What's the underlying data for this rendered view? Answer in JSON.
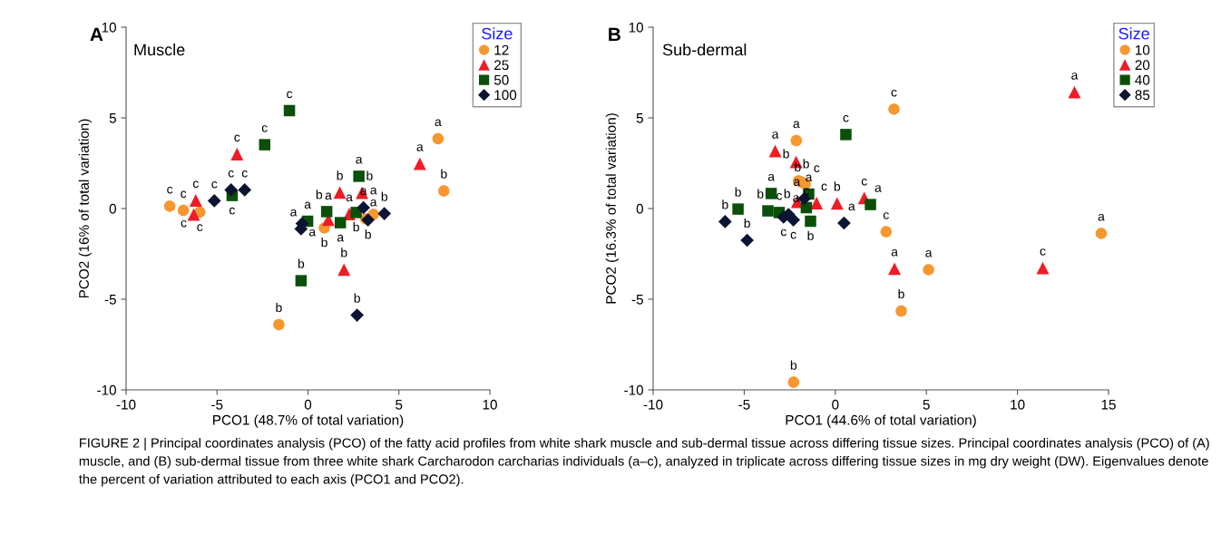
{
  "chart_data": [
    {
      "type": "scatter",
      "xlabel": "PCO1 (48.7% of total variation)",
      "ylabel": "PCO2 (16% of total variation)",
      "legend_title": "Size",
      "legend": "top right",
      "annotations": [
        "A",
        "Muscle",
        "FIGURE 2 | Principal coordinates analysis (PCO) of the fatty acid profiles from white shark muscle and sub-dermal tissue across differing tissue sizes. Principal coordinates analysis (PCO) of (A) muscle, and (B) sub-dermal tissue from three white shark Carcharodon carcharias individuals (a–c), analyzed in triplicate across differing tissue sizes in mg dry weight (DW). Eigenvalues denote the percent of variation attributed to each axis (PCO1 and PCO2)."
      ],
      "xlim": [
        -10,
        10
      ],
      "xticks": [
        -10,
        -5,
        0,
        5,
        10
      ],
      "ylim": [
        -10,
        10
      ],
      "yticks": [
        -10,
        -5,
        0,
        5,
        10
      ],
      "grid": false,
      "series": [
        {
          "name": "12",
          "color": "#f7972f",
          "marker": "circle",
          "x": [
            -7.6,
            -6.85,
            -5.95,
            -1.6,
            0.9,
            3.18,
            3.6,
            7.15,
            7.47
          ],
          "values": [
            0.13,
            -0.1,
            -0.2,
            -6.4,
            -1.07,
            -0.57,
            -0.33,
            3.85,
            0.97
          ],
          "value_labels": [
            "c",
            "c",
            "c",
            "b",
            "b",
            "a",
            "a",
            "a",
            "b"
          ]
        },
        {
          "name": "25",
          "color": "#ee1c24",
          "marker": "triangle",
          "x": [
            -6.17,
            -6.28,
            -3.9,
            1.12,
            1.75,
            2.27,
            2.97,
            1.98,
            6.15
          ],
          "values": [
            0.45,
            -0.33,
            3.0,
            -0.62,
            0.88,
            -0.3,
            0.87,
            -3.37,
            2.47
          ],
          "value_labels": [
            "c",
            "c",
            "c",
            "a",
            "b",
            "a",
            "b",
            "b",
            "a"
          ]
        },
        {
          "name": "50",
          "color": "#0a4f0a",
          "marker": "square",
          "x": [
            -4.17,
            -2.38,
            -1.02,
            -0.02,
            1.03,
            1.78,
            2.65,
            2.8,
            -0.38
          ],
          "values": [
            0.72,
            3.52,
            5.4,
            -0.7,
            -0.17,
            -0.78,
            -0.22,
            1.78,
            -3.98
          ],
          "value_labels": [
            "c",
            "c",
            "c",
            "a",
            "b",
            "a",
            "b",
            "a",
            "b"
          ]
        },
        {
          "name": "100",
          "color": "#0b1433",
          "marker": "diamond",
          "x": [
            -5.15,
            -4.23,
            -3.48,
            -0.38,
            -0.32,
            3.05,
            3.3,
            4.2,
            2.7
          ],
          "values": [
            0.43,
            1.03,
            1.03,
            -1.12,
            -0.83,
            0.05,
            -0.63,
            -0.28,
            -5.88
          ],
          "value_labels": [
            "c",
            "c",
            "c",
            "a",
            "a",
            "a",
            "b",
            "b",
            "b"
          ]
        }
      ]
    },
    {
      "type": "scatter",
      "xlabel": "PCO1 (44.6% of total variation)",
      "ylabel": "PCO2 (16.3% of total variation)",
      "legend_title": "Size",
      "legend": "top right",
      "annotations": [
        "B",
        "Sub-dermal"
      ],
      "xlim": [
        -10,
        15
      ],
      "xticks": [
        -10,
        -5,
        0,
        5,
        10,
        15
      ],
      "ylim": [
        -10,
        10
      ],
      "yticks": [
        -10,
        -5,
        0,
        5,
        10
      ],
      "grid": false,
      "series": [
        {
          "name": "10",
          "color": "#f7972f",
          "marker": "circle",
          "x": [
            3.22,
            -2.14,
            -2.02,
            -1.85,
            -1.65,
            2.79,
            5.12,
            3.62,
            -2.29,
            14.6
          ],
          "values": [
            5.48,
            3.75,
            1.53,
            1.45,
            1.35,
            -1.28,
            -3.37,
            -5.65,
            -9.58,
            -1.37
          ],
          "value_labels": [
            "c",
            "a",
            "b",
            "c",
            "b",
            "c",
            "a",
            "b",
            "b",
            "a"
          ]
        },
        {
          "name": "20",
          "color": "#ee1c24",
          "marker": "triangle",
          "x": [
            -3.3,
            -2.15,
            -2.09,
            -1.03,
            0.1,
            1.59,
            3.25,
            13.13,
            11.39
          ],
          "values": [
            3.17,
            2.57,
            0.37,
            0.3,
            0.28,
            0.58,
            -3.32,
            6.42,
            -3.28
          ],
          "value_labels": [
            "a",
            "b",
            "b",
            "c",
            "b",
            "c",
            "a",
            "a",
            "c"
          ]
        },
        {
          "name": "40",
          "color": "#0a4f0a",
          "marker": "square",
          "x": [
            -5.34,
            -3.52,
            -3.7,
            -3.08,
            -1.59,
            -1.46,
            -1.36,
            0.58,
            1.93
          ],
          "values": [
            -0.03,
            0.83,
            -0.13,
            -0.22,
            0.05,
            0.8,
            -0.7,
            4.08,
            0.22
          ],
          "value_labels": [
            "b",
            "a",
            "b",
            "c",
            "c",
            "a",
            "b",
            "c",
            "a"
          ]
        },
        {
          "name": "85",
          "color": "#0b1433",
          "marker": "diamond",
          "x": [
            -6.05,
            -4.84,
            -2.84,
            -2.57,
            -2.3,
            -1.7,
            0.48
          ],
          "values": [
            -0.72,
            -1.75,
            -0.47,
            -0.33,
            -0.63,
            0.55,
            -0.8
          ],
          "value_labels": [
            "b",
            "b",
            "c",
            "a",
            "c",
            "a",
            "a"
          ]
        }
      ]
    }
  ]
}
